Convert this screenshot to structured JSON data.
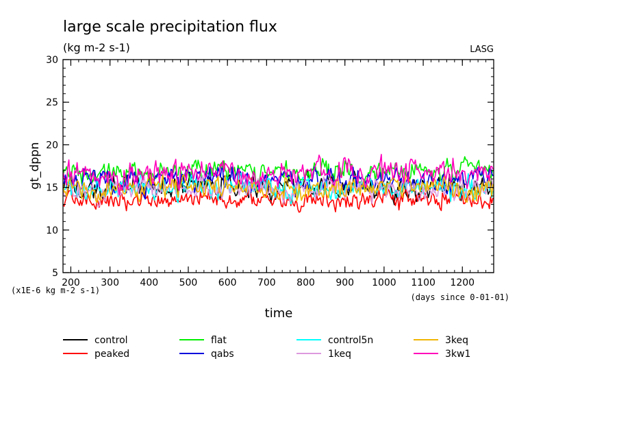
{
  "chart_data": {
    "type": "line",
    "title": "large scale precipitation flux",
    "subtitle": "(kg m-2 s-1)",
    "source_label": "LASG",
    "xlabel": "time",
    "ylabel": "gt_dppn",
    "y_scale_note": "(x1E-6 kg m-2 s-1)",
    "x_units_note": "(days since 0-01-01)",
    "xlim": [
      180,
      1280
    ],
    "ylim": [
      5,
      30
    ],
    "x_ticks": [
      200,
      300,
      400,
      500,
      600,
      700,
      800,
      900,
      1000,
      1100,
      1200
    ],
    "y_ticks": [
      5,
      10,
      15,
      20,
      25,
      30
    ],
    "grid": false,
    "legend_position": "bottom",
    "series": [
      {
        "name": "control",
        "color": "#000000",
        "mean": 15.0,
        "amplitude": 1.6
      },
      {
        "name": "peaked",
        "color": "#ff0000",
        "mean": 13.6,
        "amplitude": 1.2
      },
      {
        "name": "flat",
        "color": "#00ee00",
        "mean": 16.8,
        "amplitude": 1.5
      },
      {
        "name": "qabs",
        "color": "#0000dd",
        "mean": 15.9,
        "amplitude": 1.5
      },
      {
        "name": "control5n",
        "color": "#00ffff",
        "mean": 14.9,
        "amplitude": 1.4
      },
      {
        "name": "1keq",
        "color": "#dd99dd",
        "mean": 14.8,
        "amplitude": 1.4
      },
      {
        "name": "3keq",
        "color": "#f0b400",
        "mean": 15.1,
        "amplitude": 1.5
      },
      {
        "name": "3kw1",
        "color": "#ff00bb",
        "mean": 16.7,
        "amplitude": 1.8
      }
    ]
  }
}
